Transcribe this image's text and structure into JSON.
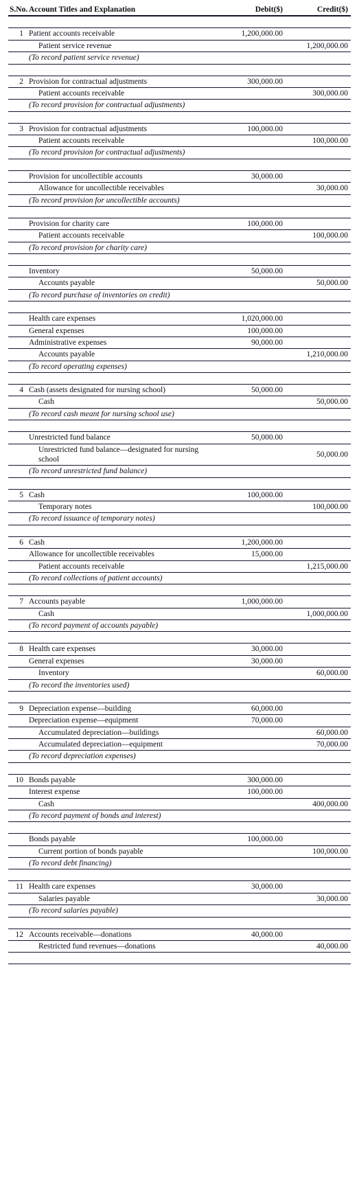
{
  "headers": {
    "sno": "S.No.",
    "title": "Account Titles and Explanation",
    "debit": "Debit($)",
    "credit": "Credit($)"
  },
  "currency_format": {
    "decimals": 2,
    "thousands_sep": ","
  },
  "entries": [
    {
      "sno": "1",
      "lines": [
        {
          "title": "Patient accounts receivable",
          "debit": 1200000,
          "classes": [
            "lead"
          ]
        },
        {
          "title": "Patient service revenue",
          "credit": 1200000,
          "classes": [
            "indent1"
          ]
        },
        {
          "explanation": "(To record patient service revenue)"
        }
      ]
    },
    {
      "sno": "2",
      "lines": [
        {
          "title": "Provision for contractual adjustments",
          "debit": 300000,
          "classes": [
            "lead"
          ]
        },
        {
          "title": "Patient accounts receivable",
          "credit": 300000,
          "classes": [
            "indent1"
          ]
        },
        {
          "explanation": "(To record provision for contractual adjustments)"
        }
      ]
    },
    {
      "sno": "3",
      "lines": [
        {
          "title": "Provision for contractual adjustments",
          "debit": 100000,
          "classes": [
            "lead"
          ]
        },
        {
          "title": "Patient accounts receivable",
          "credit": 100000,
          "classes": [
            "indent1"
          ]
        },
        {
          "explanation": "(To record provision for contractual adjustments)"
        }
      ]
    },
    {
      "sno": "",
      "lines": [
        {
          "title": "Provision for uncollectible accounts",
          "debit": 30000,
          "classes": [
            "lead"
          ]
        },
        {
          "title": "Allowance for uncollectible receivables",
          "credit": 30000,
          "classes": [
            "indent1"
          ]
        },
        {
          "explanation": "(To record provision for uncollectible accounts)"
        }
      ]
    },
    {
      "sno": "",
      "lines": [
        {
          "title": "Provision for charity care",
          "debit": 100000,
          "classes": [
            "lead"
          ]
        },
        {
          "title": "Patient accounts receivable",
          "credit": 100000,
          "classes": [
            "indent1"
          ]
        },
        {
          "explanation": "(To record provision for charity care)"
        }
      ]
    },
    {
      "sno": "",
      "lines": [
        {
          "title": "Inventory",
          "debit": 50000,
          "classes": [
            "lead"
          ]
        },
        {
          "title": "Accounts payable",
          "credit": 50000,
          "classes": [
            "indent1"
          ]
        },
        {
          "explanation": "(To record purchase of inventories on credit)"
        }
      ]
    },
    {
      "sno": "",
      "lines": [
        {
          "title": "Health care expenses",
          "debit": 1020000,
          "classes": [
            "lead"
          ]
        },
        {
          "title": "General expenses",
          "debit": 100000,
          "classes": [
            "lead"
          ]
        },
        {
          "title": "Administrative expenses",
          "debit": 90000,
          "classes": [
            "lead"
          ]
        },
        {
          "title": "Accounts payable",
          "credit": 1210000,
          "classes": [
            "indent1"
          ]
        },
        {
          "explanation": "(To record operating expenses)"
        }
      ]
    },
    {
      "sno": "4",
      "lines": [
        {
          "title": "Cash (assets designated for nursing school)",
          "debit": 50000,
          "classes": [
            "lead"
          ]
        },
        {
          "title": "Cash",
          "credit": 50000,
          "classes": [
            "indent1"
          ]
        },
        {
          "explanation": "(To record cash meant for nursing school use)"
        }
      ]
    },
    {
      "sno": "",
      "lines": [
        {
          "title": "Unrestricted fund balance",
          "debit": 50000,
          "classes": [
            "lead"
          ]
        },
        {
          "title": "Unrestricted fund balance—designated for nursing school",
          "credit": 50000,
          "classes": [
            "indent1"
          ]
        },
        {
          "explanation": "(To record unrestricted fund balance)"
        }
      ]
    },
    {
      "sno": "5",
      "lines": [
        {
          "title": "Cash",
          "debit": 100000,
          "classes": [
            "lead"
          ]
        },
        {
          "title": "Temporary notes",
          "credit": 100000,
          "classes": [
            "indent1"
          ]
        },
        {
          "explanation": "(To record issuance of temporary notes)"
        }
      ]
    },
    {
      "sno": "6",
      "lines": [
        {
          "title": "Cash",
          "debit": 1200000,
          "classes": [
            "lead"
          ]
        },
        {
          "title": "Allowance for uncollectible receivables",
          "debit": 15000,
          "classes": [
            "lead"
          ]
        },
        {
          "title": "Patient accounts receivable",
          "credit": 1215000,
          "classes": [
            "indent1"
          ]
        },
        {
          "explanation": "(To record collections of patient accounts)"
        }
      ]
    },
    {
      "sno": "7",
      "lines": [
        {
          "title": "Accounts payable",
          "debit": 1000000,
          "classes": [
            "lead"
          ]
        },
        {
          "title": "Cash",
          "credit": 1000000,
          "classes": [
            "indent1"
          ]
        },
        {
          "explanation": "(To record payment of accounts payable)"
        }
      ]
    },
    {
      "sno": "8",
      "lines": [
        {
          "title": "Health care expenses",
          "debit": 30000,
          "classes": [
            "lead"
          ]
        },
        {
          "title": "General expenses",
          "debit": 30000,
          "classes": [
            "lead"
          ]
        },
        {
          "title": "Inventory",
          "credit": 60000,
          "classes": [
            "indent1"
          ]
        },
        {
          "explanation": "(To record the inventories used)"
        }
      ]
    },
    {
      "sno": "9",
      "lines": [
        {
          "title": "Depreciation expense—building",
          "debit": 60000,
          "classes": [
            "lead"
          ]
        },
        {
          "title": "Depreciation expense—equipment",
          "debit": 70000,
          "classes": [
            "lead"
          ]
        },
        {
          "title": "Accumulated depreciation—buildings",
          "credit": 60000,
          "classes": [
            "indent1"
          ]
        },
        {
          "title": "Accumulated depreciation—equipment",
          "credit": 70000,
          "classes": [
            "indent1"
          ]
        },
        {
          "explanation": "(To record depreciation expenses)"
        }
      ]
    },
    {
      "sno": "10",
      "lines": [
        {
          "title": "Bonds payable",
          "debit": 300000,
          "classes": [
            "lead"
          ]
        },
        {
          "title": "Interest expense",
          "debit": 100000,
          "classes": [
            "lead"
          ]
        },
        {
          "title": "Cash",
          "credit": 400000,
          "classes": [
            "indent1"
          ]
        },
        {
          "explanation": "(To record payment of bonds and interest)"
        }
      ]
    },
    {
      "sno": "",
      "lines": [
        {
          "title": "Bonds payable",
          "debit": 100000,
          "classes": [
            "lead"
          ]
        },
        {
          "title": "Current portion of bonds payable",
          "credit": 100000,
          "classes": [
            "indent1"
          ]
        },
        {
          "explanation": "(To record debt financing)"
        }
      ]
    },
    {
      "sno": "11",
      "lines": [
        {
          "title": "Health care expenses",
          "debit": 30000,
          "classes": [
            "lead"
          ]
        },
        {
          "title": "Salaries payable",
          "credit": 30000,
          "classes": [
            "indent1"
          ]
        },
        {
          "explanation": "(To record salaries payable)"
        }
      ]
    },
    {
      "sno": "12",
      "lines": [
        {
          "title": "Accounts receivable—donations",
          "debit": 40000,
          "classes": [
            "lead"
          ]
        },
        {
          "title": "Restricted fund revenues—donations",
          "credit": 40000,
          "classes": [
            "indent1"
          ]
        }
      ]
    }
  ]
}
